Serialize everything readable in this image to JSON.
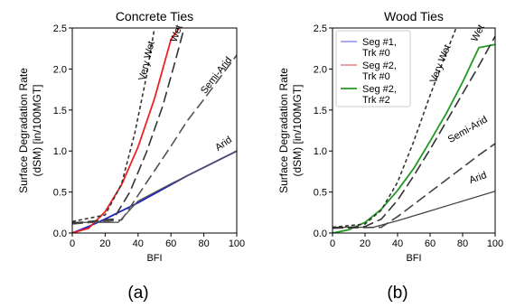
{
  "chart_data": [
    {
      "type": "line",
      "title": "Concrete Ties",
      "panel_label": "(a)",
      "xlabel": "BFI",
      "ylabel": [
        "Surface Degradation Rate",
        "(dSM) [in/100MGT]"
      ],
      "xlim": [
        0,
        100
      ],
      "ylim": [
        0,
        2.5
      ],
      "xticks": [
        "0",
        "20",
        "40",
        "60",
        "80",
        "100"
      ],
      "yticks": [
        "0.0",
        "0.5",
        "1.0",
        "1.5",
        "2.0",
        "2.5"
      ],
      "grid": false,
      "annotations": [
        {
          "text": "Very Wet",
          "x": 47,
          "y": 2.09,
          "angle": -76
        },
        {
          "text": "Wet",
          "x": 65,
          "y": 2.42,
          "angle": -70
        },
        {
          "text": "Semi-Arid",
          "x": 89,
          "y": 1.9,
          "angle": -52
        },
        {
          "text": "Arid",
          "x": 93,
          "y": 1.06,
          "angle": -35
        }
      ],
      "series": [
        {
          "color": "#1f1fc8",
          "dash": "solid",
          "width": 1.8,
          "x": [
            0,
            10,
            20,
            30,
            40,
            50,
            60,
            70,
            80,
            90,
            100
          ],
          "y": [
            0.0,
            0.08,
            0.17,
            0.27,
            0.37,
            0.48,
            0.59,
            0.7,
            0.8,
            0.9,
            1.0
          ]
        },
        {
          "color": "#ee2222",
          "dash": "solid",
          "width": 1.8,
          "x": [
            0,
            10,
            20,
            30,
            40,
            50,
            60,
            65
          ],
          "y": [
            0.0,
            0.06,
            0.26,
            0.59,
            1.05,
            1.64,
            2.36,
            2.5
          ]
        },
        {
          "color": "#555555",
          "dash": "solid",
          "width": 1.3,
          "x": [
            0,
            28,
            40,
            60,
            80,
            100
          ],
          "y": [
            0.13,
            0.13,
            0.39,
            0.6,
            0.8,
            1.0
          ]
        },
        {
          "color": "#555555",
          "dash": "long",
          "width": 1.6,
          "x": [
            0,
            30,
            40,
            50,
            60,
            70,
            80,
            90,
            100
          ],
          "y": [
            0.11,
            0.16,
            0.46,
            0.76,
            1.06,
            1.37,
            1.63,
            1.9,
            2.17
          ]
        },
        {
          "color": "#333333",
          "dash": "long",
          "width": 1.6,
          "x": [
            0,
            25,
            35,
            45,
            55,
            62,
            68
          ],
          "y": [
            0.12,
            0.17,
            0.5,
            0.98,
            1.55,
            2.05,
            2.5
          ]
        },
        {
          "color": "#333333",
          "dash": "short",
          "width": 1.6,
          "x": [
            0,
            20,
            30,
            38,
            45,
            50
          ],
          "y": [
            0.14,
            0.22,
            0.6,
            1.22,
            1.9,
            2.5
          ]
        }
      ]
    },
    {
      "type": "line",
      "title": "Wood Ties",
      "panel_label": "(b)",
      "xlabel": "BFI",
      "ylabel": [
        "Surface Degradation Rate",
        "(dSM) [in/100MGT]"
      ],
      "xlim": [
        0,
        100
      ],
      "ylim": [
        0,
        2.5
      ],
      "xticks": [
        "0",
        "20",
        "40",
        "60",
        "80",
        "100"
      ],
      "yticks": [
        "0.0",
        "0.5",
        "1.0",
        "1.5",
        "2.0",
        "2.5"
      ],
      "grid": false,
      "legend": {
        "placement": "top-left",
        "entries": [
          {
            "label": [
              "Seg #1,",
              "Trk #0"
            ],
            "color": "#7777ee",
            "width": 1.2
          },
          {
            "label": [
              "Seg #2,",
              "Trk #0"
            ],
            "color": "#ee6666",
            "width": 1.2
          },
          {
            "label": [
              "Seg #2,",
              "Trk #2"
            ],
            "color": "#229922",
            "width": 1.8
          }
        ]
      },
      "annotations": [
        {
          "text": "Very Wet",
          "x": 68,
          "y": 2.05,
          "angle": -68
        },
        {
          "text": "Wet",
          "x": 91,
          "y": 2.42,
          "angle": -63
        },
        {
          "text": "Semi-Arid",
          "x": 84,
          "y": 1.23,
          "angle": -30
        },
        {
          "text": "Arid",
          "x": 90,
          "y": 0.64,
          "angle": -20
        }
      ],
      "series": [
        {
          "color": "#229922",
          "dash": "solid",
          "width": 1.8,
          "x": [
            0,
            10,
            20,
            30,
            40,
            50,
            60,
            70,
            80,
            90,
            100
          ],
          "y": [
            0.0,
            0.04,
            0.13,
            0.29,
            0.52,
            0.79,
            1.12,
            1.46,
            1.84,
            2.26,
            2.3
          ]
        },
        {
          "color": "#444444",
          "dash": "solid",
          "width": 1.3,
          "x": [
            0,
            25,
            40,
            60,
            80,
            100
          ],
          "y": [
            0.07,
            0.07,
            0.15,
            0.27,
            0.39,
            0.51
          ]
        },
        {
          "color": "#444444",
          "dash": "long",
          "width": 1.6,
          "x": [
            0,
            30,
            40,
            50,
            60,
            70,
            80,
            90,
            100
          ],
          "y": [
            0.06,
            0.07,
            0.2,
            0.35,
            0.5,
            0.65,
            0.8,
            0.95,
            1.09
          ]
        },
        {
          "color": "#333333",
          "dash": "long",
          "width": 1.6,
          "x": [
            0,
            20,
            30,
            40,
            50,
            60,
            70,
            80,
            90,
            100
          ],
          "y": [
            0.06,
            0.08,
            0.17,
            0.4,
            0.7,
            1.02,
            1.36,
            1.7,
            2.04,
            2.4
          ]
        },
        {
          "color": "#333333",
          "dash": "short",
          "width": 1.6,
          "x": [
            0,
            20,
            30,
            40,
            50,
            60,
            70,
            76
          ],
          "y": [
            0.07,
            0.11,
            0.28,
            0.62,
            1.12,
            1.68,
            2.2,
            2.5
          ]
        }
      ]
    }
  ]
}
